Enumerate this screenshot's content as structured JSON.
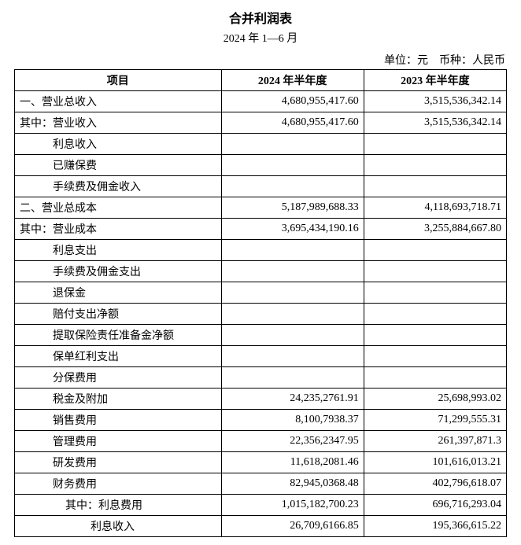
{
  "title": "合并利润表",
  "subtitle": "2024 年 1—6 月",
  "unit_label": "单位：元　币种：人民币",
  "columns": {
    "item": "项目",
    "y2024": "2024 年半年度",
    "y2023": "2023 年半年度"
  },
  "rows": [
    {
      "label": "一、营业总收入",
      "indent": 1,
      "y2024": "4,680,955,417.60",
      "y2023": "3,515,536,342.14"
    },
    {
      "label": "其中：营业收入",
      "indent": 1,
      "y2024": "4,680,955,417.60",
      "y2023": "3,515,536,342.14"
    },
    {
      "label": "利息收入",
      "indent": 2,
      "y2024": "",
      "y2023": ""
    },
    {
      "label": "已赚保费",
      "indent": 2,
      "y2024": "",
      "y2023": ""
    },
    {
      "label": "手续费及佣金收入",
      "indent": 2,
      "y2024": "",
      "y2023": ""
    },
    {
      "label": "二、营业总成本",
      "indent": 1,
      "y2024": "5,187,989,688.33",
      "y2023": "4,118,693,718.71"
    },
    {
      "label": "其中：营业成本",
      "indent": 1,
      "y2024": "3,695,434,190.16",
      "y2023": "3,255,884,667.80"
    },
    {
      "label": "利息支出",
      "indent": 2,
      "y2024": "",
      "y2023": ""
    },
    {
      "label": "手续费及佣金支出",
      "indent": 2,
      "y2024": "",
      "y2023": ""
    },
    {
      "label": "退保金",
      "indent": 2,
      "y2024": "",
      "y2023": ""
    },
    {
      "label": "赔付支出净额",
      "indent": 2,
      "y2024": "",
      "y2023": ""
    },
    {
      "label": "提取保险责任准备金净额",
      "indent": 2,
      "y2024": "",
      "y2023": ""
    },
    {
      "label": "保单红利支出",
      "indent": 2,
      "y2024": "",
      "y2023": ""
    },
    {
      "label": "分保费用",
      "indent": 2,
      "y2024": "",
      "y2023": ""
    },
    {
      "label": "税金及附加",
      "indent": 2,
      "y2024": "24,235,2761.91",
      "y2023": "25,698,993.02"
    },
    {
      "label": "销售费用",
      "indent": 2,
      "y2024": "8,100,7938.37",
      "y2023": "71,299,555.31"
    },
    {
      "label": "管理费用",
      "indent": 2,
      "y2024": "22,356,2347.95",
      "y2023": "261,397,871.3"
    },
    {
      "label": "研发费用",
      "indent": 2,
      "y2024": "11,618,2081.46",
      "y2023": "101,616,013.21"
    },
    {
      "label": "财务费用",
      "indent": 2,
      "y2024": "82,945,0368.48",
      "y2023": "402,796,618.07"
    },
    {
      "label": "其中：利息费用",
      "indent": 3,
      "y2024": "1,015,182,700.23",
      "y2023": "696,716,293.04"
    },
    {
      "label": "利息收入",
      "indent": 4,
      "y2024": "26,709,6166.85",
      "y2023": "195,366,615.22"
    }
  ]
}
